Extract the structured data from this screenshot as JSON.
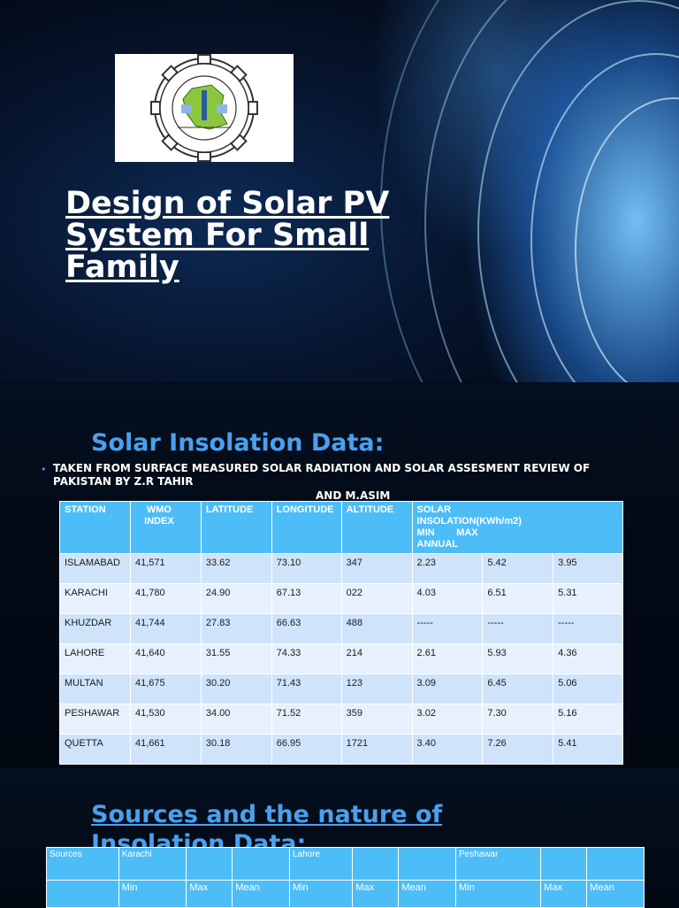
{
  "slide1": {
    "title_part1": "Design of Solar PV System",
    "title_part2": "For Small Family"
  },
  "slide2": {
    "title": "Solar Insolation Data:",
    "bullet": "TAKEN FROM SURFACE MEASURED SOLAR RADIATION AND SOLAR ASSESMENT REVIEW OF PAKISTAN BY Z.R TAHIR",
    "authors": "AND M.ASIM",
    "table": {
      "headers": [
        "STATION",
        "WMO INDEX",
        "LATITUDE",
        "LONGITUDE",
        "ALTITUDE"
      ],
      "insolation_header": "SOLAR INSOLATION(KWh/m2)",
      "insolation_sub": "MIN        MAX",
      "insolation_sub2": "ANNUAL",
      "rows": [
        [
          "ISLAMABAD",
          "41,571",
          "33.62",
          "73.10",
          "347",
          "2.23",
          "5.42",
          "3.95"
        ],
        [
          "KARACHI",
          "41,780",
          "24.90",
          "67.13",
          "022",
          "4.03",
          "6.51",
          "5.31"
        ],
        [
          "KHUZDAR",
          "41,744",
          "27.83",
          "66.63",
          "488",
          "-----",
          "-----",
          "-----"
        ],
        [
          "LAHORE",
          "41,640",
          "31.55",
          "74.33",
          "214",
          "2.61",
          "5.93",
          "4.36"
        ],
        [
          "MULTAN",
          "41,675",
          "30.20",
          "71.43",
          "123",
          "3.09",
          "6.45",
          "5.06"
        ],
        [
          "PESHAWAR",
          "41,530",
          "34.00",
          "71.52",
          "359",
          "3.02",
          "7.30",
          "5.16"
        ],
        [
          "QUETTA",
          "41,661",
          "30.18",
          "66.95",
          "1721",
          "3.40",
          "7.26",
          "5.41"
        ]
      ]
    }
  },
  "slide3": {
    "title": "Sources and the nature of Insolation Data:",
    "table": {
      "header_row": [
        "Sources",
        "Karachi",
        "",
        "",
        "Lahore",
        "",
        "",
        "Peshawar",
        "",
        ""
      ],
      "sub_row": [
        "",
        "Min",
        "Max",
        "Mean",
        "Min",
        "Max",
        "Mean",
        "Min",
        "Max",
        "Mean"
      ]
    }
  },
  "colors": {
    "table_header": "#4dbdf7",
    "row_odd": "#cfe4fb",
    "row_even": "#e6f1fd",
    "heading_blue": "#4aa0ee"
  }
}
